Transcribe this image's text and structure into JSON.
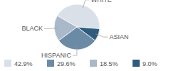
{
  "chart_data": {
    "type": "pie",
    "categories": [
      "WHITE",
      "ASIAN",
      "HISPANIC",
      "BLACK"
    ],
    "values": [
      42.9,
      9.0,
      29.6,
      18.5
    ],
    "value_labels": [
      "42.9%",
      "9.0%",
      "29.6%",
      "18.5%"
    ],
    "colors": [
      "#d9e0e8",
      "#2f5b7c",
      "#6b8aa6",
      "#a9b9c9"
    ],
    "legend": "bottom"
  }
}
